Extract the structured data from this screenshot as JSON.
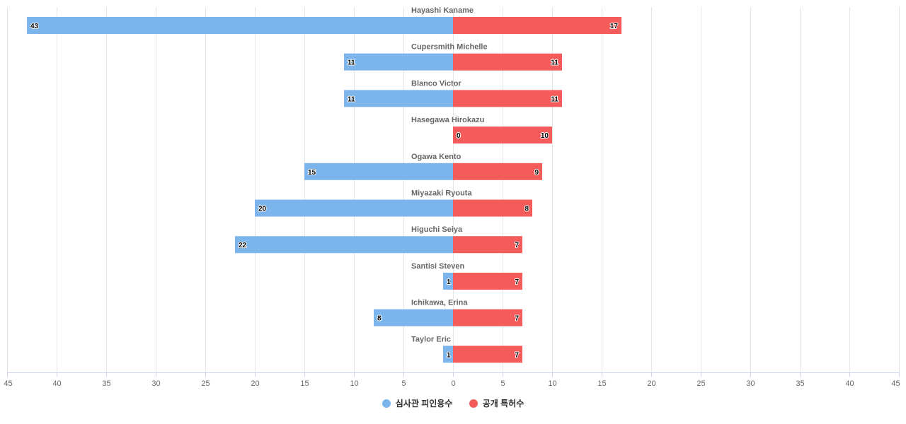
{
  "chart_data": {
    "type": "bar",
    "orientation": "horizontal-diverging",
    "categories": [
      "Hayashi Kaname",
      "Cupersmith Michelle",
      "Blanco Victor",
      "Hasegawa Hirokazu",
      "Ogawa Kento",
      "Miyazaki Ryouta",
      "Higuchi Seiya",
      "Santisi Steven",
      "Ichikawa, Erina",
      "Taylor Eric"
    ],
    "series": [
      {
        "name": "심사관 피인용수",
        "color": "#7cb5ec",
        "side": "left",
        "values": [
          43,
          11,
          11,
          0,
          15,
          20,
          22,
          1,
          8,
          1
        ]
      },
      {
        "name": "공개 특허수",
        "color": "#f45b5b",
        "side": "right",
        "values": [
          17,
          11,
          11,
          10,
          9,
          8,
          7,
          7,
          7,
          7
        ]
      }
    ],
    "xlim": [
      -45,
      45
    ],
    "x_ticks": [
      "45",
      "40",
      "35",
      "30",
      "25",
      "20",
      "15",
      "10",
      "5",
      "0",
      "5",
      "10",
      "15",
      "20",
      "25",
      "30",
      "35",
      "40",
      "45"
    ],
    "grid": true,
    "legend_position": "bottom-center",
    "title": "",
    "xlabel": "",
    "ylabel": ""
  }
}
